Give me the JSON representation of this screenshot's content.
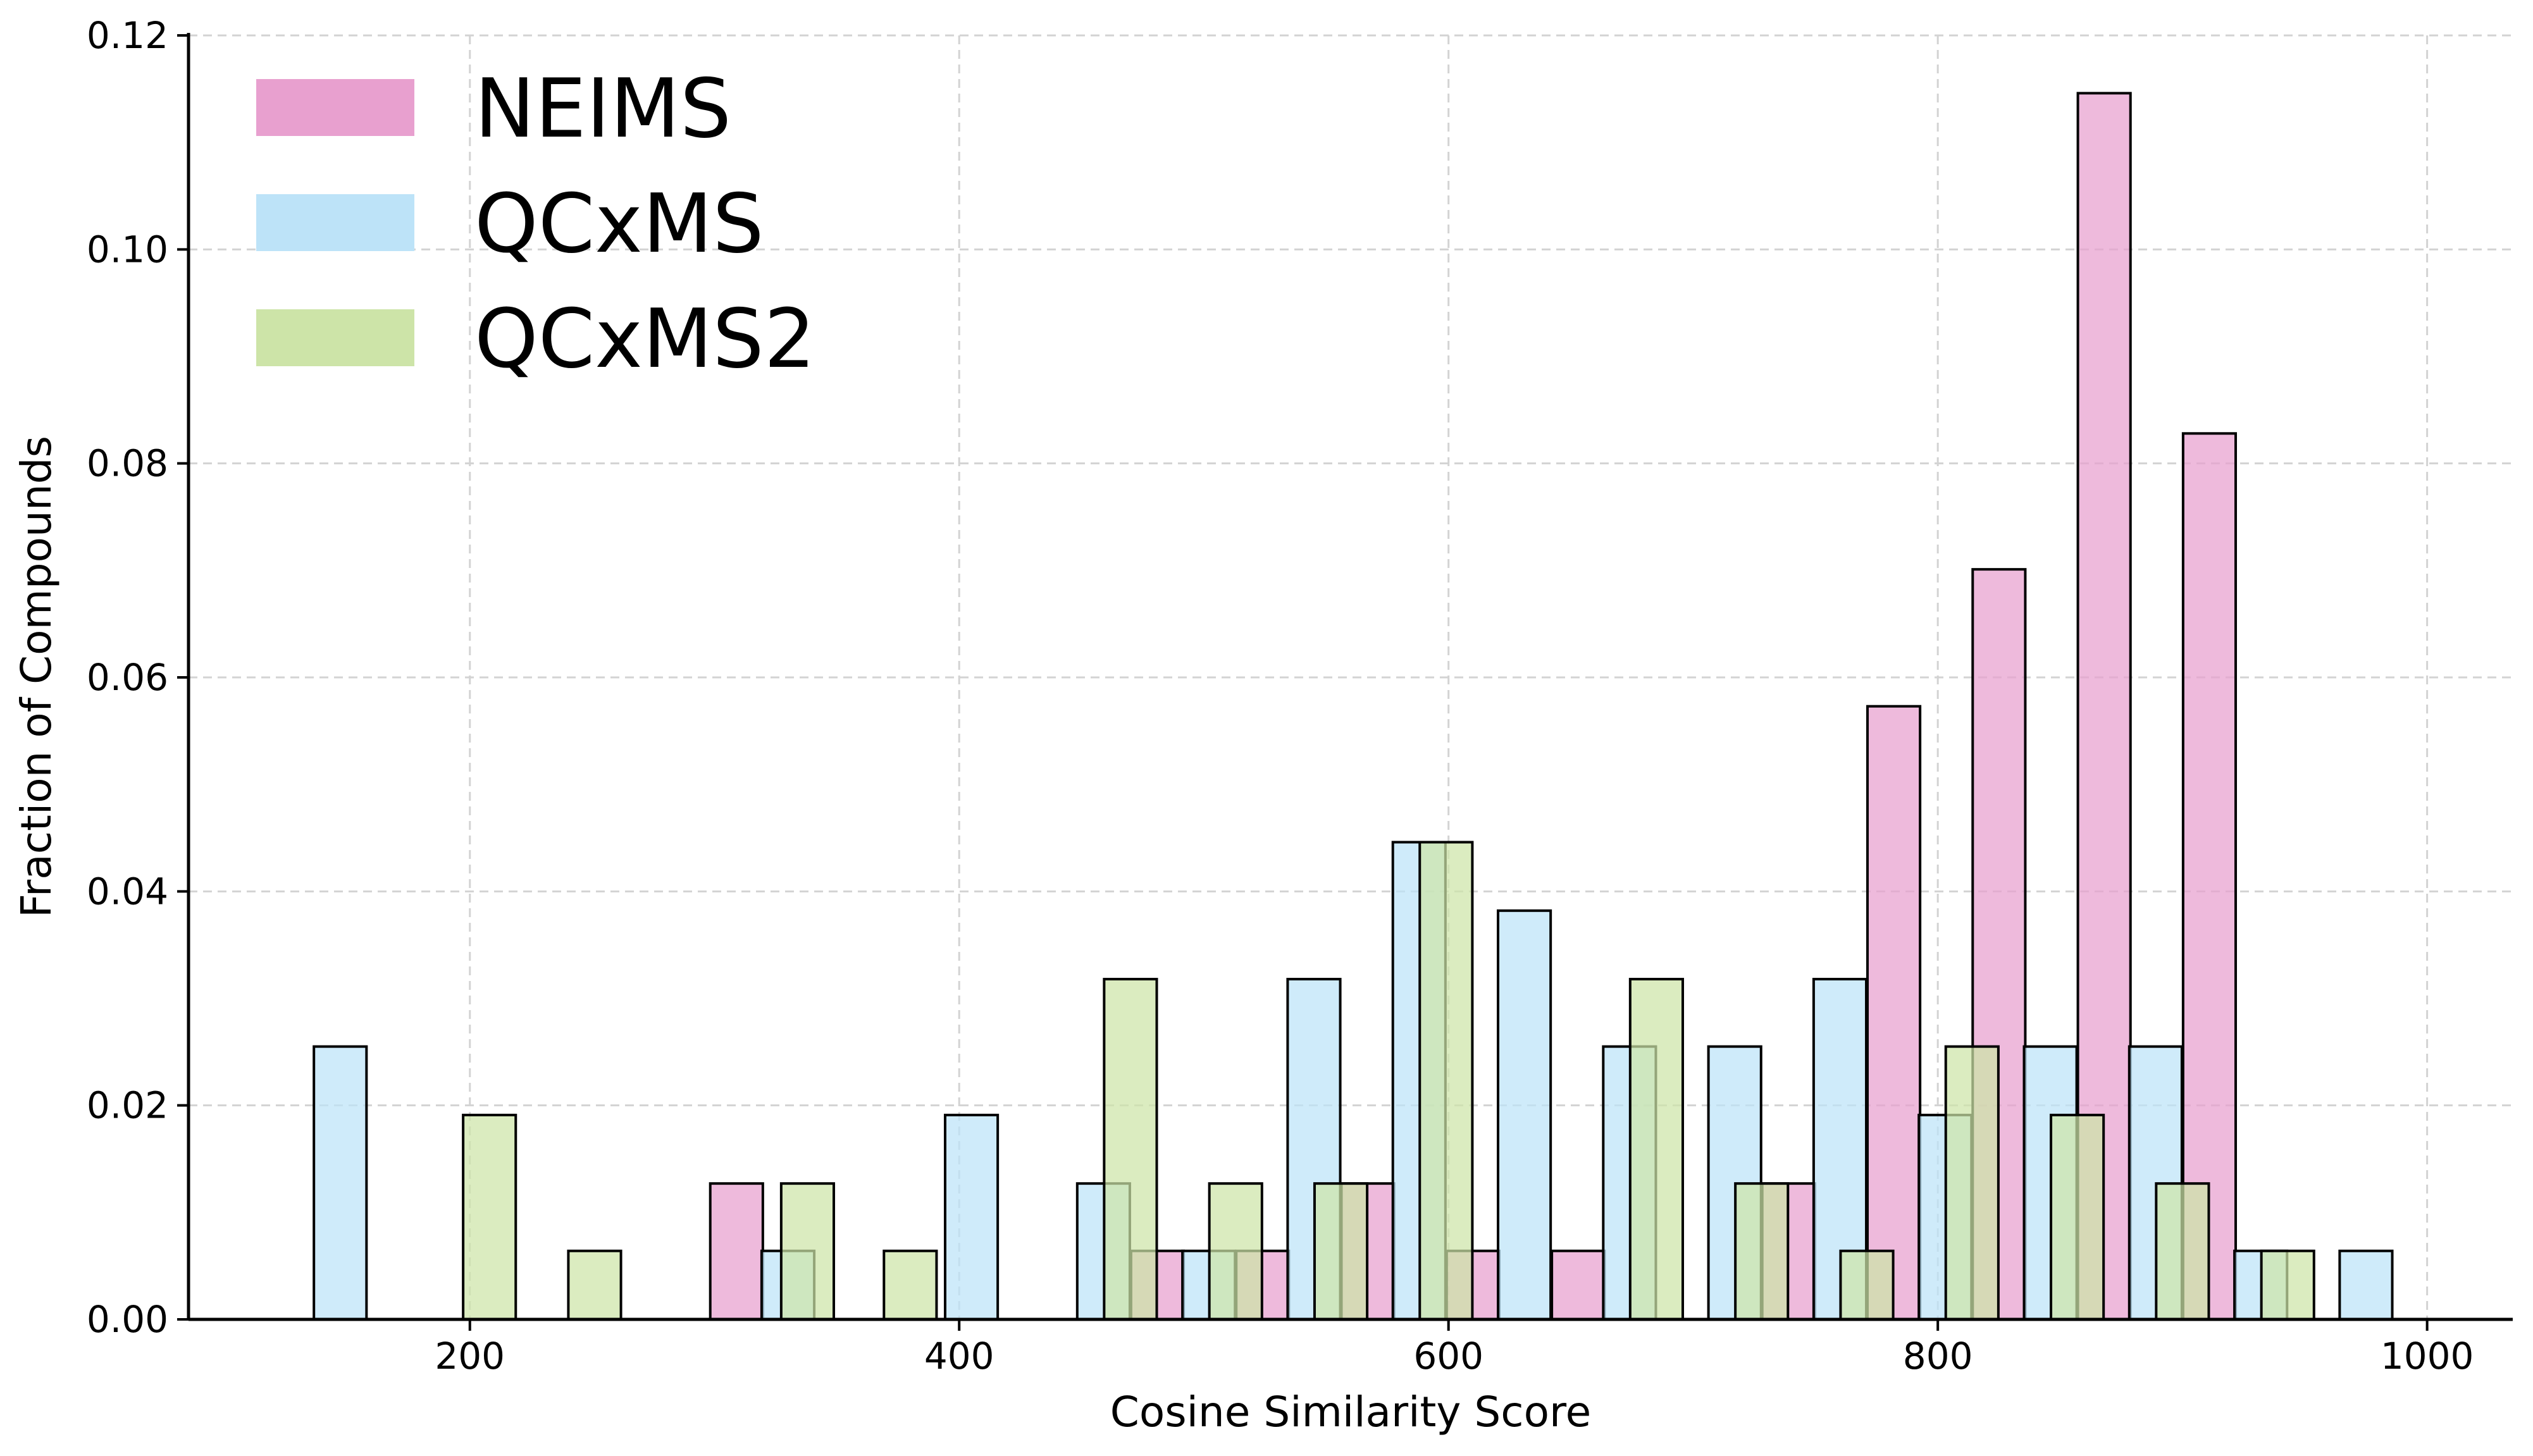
{
  "chart_data": {
    "type": "bar",
    "title": "",
    "xlabel": "Cosine Similarity Score",
    "ylabel": "Fraction of Compounds",
    "xlim": [
      85,
      1035
    ],
    "ylim": [
      0,
      0.12
    ],
    "xticks": [
      200,
      400,
      600,
      800,
      1000
    ],
    "yticks": [
      "0.00",
      "0.02",
      "0.04",
      "0.06",
      "0.08",
      "0.10",
      "0.12"
    ],
    "grid": true,
    "legend_position": "top-left",
    "bin_width": 21.5,
    "series": [
      {
        "name": "NEIMS",
        "color": "#e8a0cf",
        "bars": [
          {
            "x": 309,
            "y": 0.0127
          },
          {
            "x": 481,
            "y": 0.0064
          },
          {
            "x": 524,
            "y": 0.0064
          },
          {
            "x": 567,
            "y": 0.0127
          },
          {
            "x": 610,
            "y": 0.0064
          },
          {
            "x": 653,
            "y": 0.0064
          },
          {
            "x": 739,
            "y": 0.0127
          },
          {
            "x": 782,
            "y": 0.0573
          },
          {
            "x": 825,
            "y": 0.0701
          },
          {
            "x": 868,
            "y": 0.1146
          },
          {
            "x": 911,
            "y": 0.0828
          }
        ]
      },
      {
        "name": "QCxMS",
        "color": "#bde3f8",
        "bars": [
          {
            "x": 147,
            "y": 0.0255
          },
          {
            "x": 330,
            "y": 0.0064
          },
          {
            "x": 405,
            "y": 0.0191
          },
          {
            "x": 459,
            "y": 0.0127
          },
          {
            "x": 502,
            "y": 0.0064
          },
          {
            "x": 545,
            "y": 0.0318
          },
          {
            "x": 588,
            "y": 0.0446
          },
          {
            "x": 631,
            "y": 0.0382
          },
          {
            "x": 674,
            "y": 0.0255
          },
          {
            "x": 717,
            "y": 0.0255
          },
          {
            "x": 760,
            "y": 0.0318
          },
          {
            "x": 803,
            "y": 0.0191
          },
          {
            "x": 846,
            "y": 0.0255
          },
          {
            "x": 889,
            "y": 0.0255
          },
          {
            "x": 932,
            "y": 0.0064
          },
          {
            "x": 975,
            "y": 0.0064
          }
        ]
      },
      {
        "name": "QCxMS2",
        "color": "#cde4a8",
        "bars": [
          {
            "x": 208,
            "y": 0.0191
          },
          {
            "x": 251,
            "y": 0.0064
          },
          {
            "x": 338,
            "y": 0.0127
          },
          {
            "x": 380,
            "y": 0.0064
          },
          {
            "x": 470,
            "y": 0.0318
          },
          {
            "x": 513,
            "y": 0.0127
          },
          {
            "x": 556,
            "y": 0.0127
          },
          {
            "x": 599,
            "y": 0.0446
          },
          {
            "x": 685,
            "y": 0.0318
          },
          {
            "x": 728,
            "y": 0.0127
          },
          {
            "x": 771,
            "y": 0.0064
          },
          {
            "x": 814,
            "y": 0.0255
          },
          {
            "x": 857,
            "y": 0.0191
          },
          {
            "x": 900,
            "y": 0.0127
          },
          {
            "x": 943,
            "y": 0.0064
          }
        ]
      }
    ]
  }
}
